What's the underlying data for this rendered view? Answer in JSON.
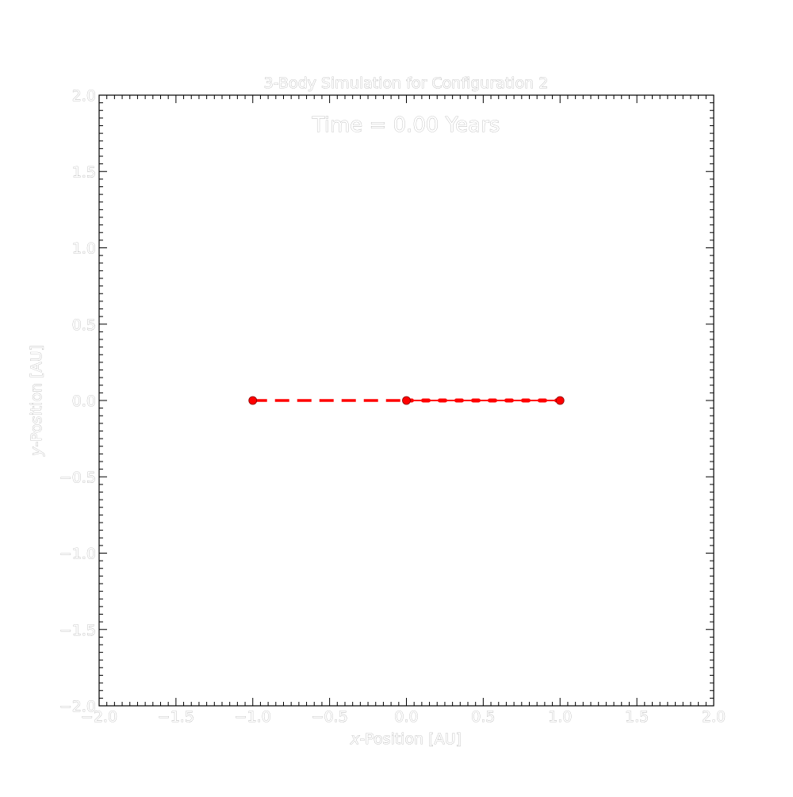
{
  "chart_data": {
    "type": "line",
    "title": "3-Body Simulation for Configuration 2",
    "annotation": "Time = 0.00 Years",
    "xlabel_italic": "x",
    "xlabel_rest": "-Position [AU]",
    "ylabel_italic": "y",
    "ylabel_rest": "-Position [AU]",
    "xlim": [
      -2.0,
      2.0
    ],
    "ylim": [
      -2.0,
      2.0
    ],
    "xticks": [
      "−2.0",
      "−1.5",
      "−1.0",
      "−0.5",
      "0.0",
      "0.5",
      "1.0",
      "1.5",
      "2.0"
    ],
    "yticks": [
      "2.0",
      "1.5",
      "1.0",
      "0.5",
      "0.0",
      "−0.5",
      "−1.0",
      "−1.5",
      "−2.0"
    ],
    "grid": false,
    "series": [
      {
        "style": "dashed",
        "color": "#ff0000",
        "points": [
          [
            -1.0,
            0.0
          ],
          [
            0.0,
            0.0
          ]
        ]
      },
      {
        "style": "dotted",
        "color": "#ff0000",
        "points": [
          [
            0.0,
            0.0
          ],
          [
            1.0,
            0.0
          ]
        ]
      }
    ],
    "bodies": [
      {
        "x": -1.0,
        "y": 0.0,
        "color": "#ff0000"
      },
      {
        "x": 0.0,
        "y": 0.0,
        "color": "#ff0000"
      },
      {
        "x": 1.0,
        "y": 0.0,
        "color": "#ff0000"
      }
    ]
  }
}
